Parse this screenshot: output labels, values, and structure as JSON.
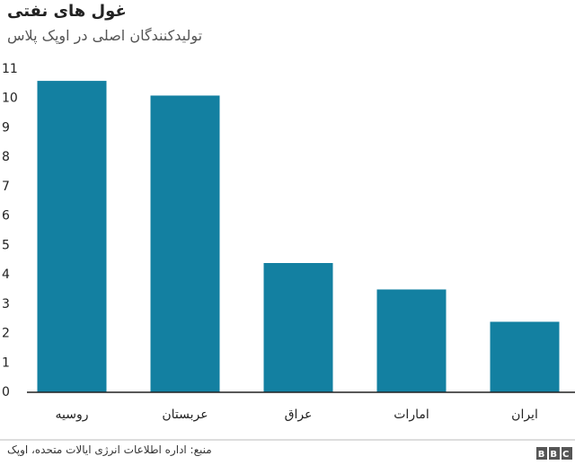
{
  "chart_data": {
    "type": "bar",
    "title": "غول های نفتی",
    "subtitle": "تولیدکنندگان اصلی در اوپک پلاس",
    "categories": [
      "روسیه",
      "عربستان",
      "عراق",
      "امارات",
      "ایران"
    ],
    "values": [
      10.6,
      10.1,
      4.4,
      3.5,
      2.4
    ],
    "color": "#1380a1",
    "ylim": [
      0,
      11
    ],
    "yticks": [
      0,
      1,
      2,
      3,
      4,
      5,
      6,
      7,
      8,
      9,
      10,
      11
    ],
    "grid": false,
    "source": "منبع: اداره اطلاعات انرژی ایالات متحده، اوپک",
    "logo": "BBC"
  }
}
